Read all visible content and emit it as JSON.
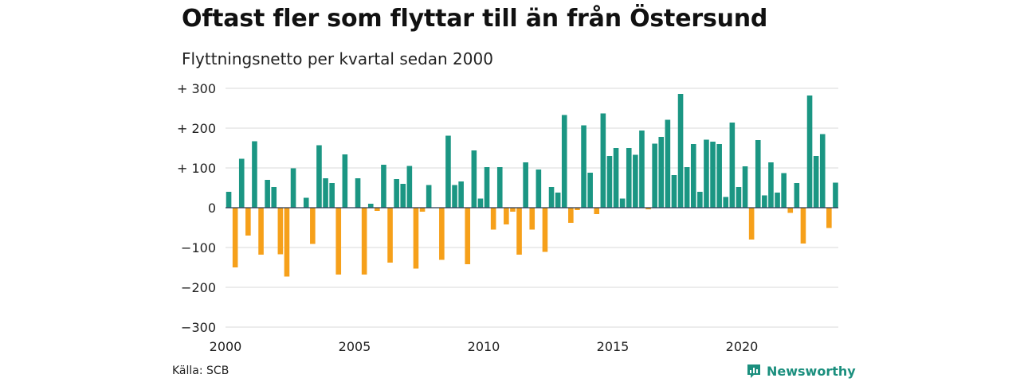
{
  "header": {
    "title": "Oftast fler som flyttar till än från Östersund",
    "subtitle": "Flyttningsnetto per kvartal sedan 2000"
  },
  "footer": {
    "source": "Källa: SCB",
    "brand": "Newsworthy",
    "brand_icon": "chart-badge-icon"
  },
  "colors": {
    "positive": "#1b9683",
    "negative": "#f6a01a",
    "grid": "#d9d9d9",
    "zero_line": "#2b3a55",
    "brand": "#1b8f7e"
  },
  "chart_data": {
    "type": "bar",
    "x_start": "2000-Q1",
    "x_step": "quarter",
    "ylim": [
      -300,
      300
    ],
    "yticks": [
      {
        "value": 300,
        "label": "+ 300"
      },
      {
        "value": 200,
        "label": "+ 200"
      },
      {
        "value": 100,
        "label": "+ 100"
      },
      {
        "value": 0,
        "label": "0"
      },
      {
        "value": -100,
        "label": "−100"
      },
      {
        "value": -200,
        "label": "−200"
      },
      {
        "value": -300,
        "label": "−300"
      }
    ],
    "xticks": [
      "2000",
      "2005",
      "2010",
      "2015",
      "2020"
    ],
    "grid": true,
    "values": [
      40,
      -150,
      123,
      -70,
      167,
      -118,
      70,
      52,
      -117,
      -173,
      99,
      0,
      25,
      -91,
      157,
      74,
      62,
      -168,
      134,
      0,
      74,
      -168,
      10,
      -8,
      108,
      -138,
      72,
      60,
      105,
      -153,
      -10,
      57,
      0,
      -131,
      181,
      57,
      66,
      -142,
      144,
      23,
      102,
      -55,
      102,
      -42,
      -10,
      -118,
      114,
      -55,
      96,
      -111,
      52,
      38,
      233,
      -38,
      -6,
      207,
      88,
      -16,
      237,
      130,
      150,
      23,
      150,
      133,
      194,
      -4,
      161,
      178,
      221,
      82,
      286,
      102,
      160,
      40,
      171,
      166,
      160,
      27,
      214,
      52,
      104,
      -80,
      170,
      31,
      114,
      38,
      87,
      -13,
      62,
      -90,
      282,
      130,
      185,
      -51,
      63
    ]
  }
}
